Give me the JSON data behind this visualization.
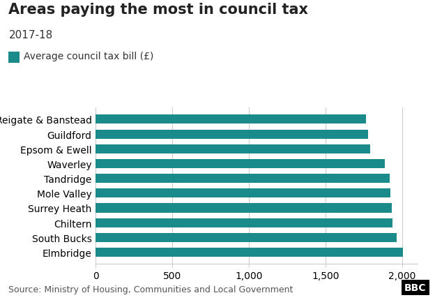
{
  "title": "Areas paying the most in council tax",
  "subtitle": "2017-18",
  "legend_label": "Average council tax bill (£)",
  "source": "Source: Ministry of Housing, Communities and Local Government",
  "categories": [
    "Elmbridge",
    "South Bucks",
    "Chiltern",
    "Surrey Heath",
    "Mole Valley",
    "Tandridge",
    "Waverley",
    "Epsom & Ewell",
    "Guildford",
    "Reigate & Banstead"
  ],
  "values": [
    2003,
    1962,
    1936,
    1930,
    1921,
    1916,
    1886,
    1791,
    1776,
    1762
  ],
  "bar_color": "#1a8a8a",
  "xlim": [
    0,
    2100
  ],
  "xticks": [
    0,
    500,
    1000,
    1500,
    2000
  ],
  "xtick_labels": [
    "0",
    "500",
    "1,000",
    "1,500",
    "2,000"
  ],
  "background_color": "#ffffff",
  "grid_color": "#cccccc",
  "title_fontsize": 15,
  "subtitle_fontsize": 11,
  "legend_fontsize": 10,
  "tick_fontsize": 10,
  "source_fontsize": 9
}
